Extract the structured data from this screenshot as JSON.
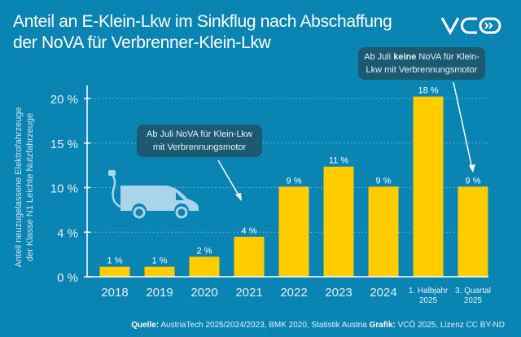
{
  "title_lines": [
    "Anteil an E-Klein-Lkw im Sinkflug nach Abschaffung",
    "der NoVA für Verbrenner-Klein-Lkw"
  ],
  "logo": "VCÖ",
  "colors": {
    "background": "#0a84b2",
    "bar": "#ffcc00",
    "annotation": "#1c5a72",
    "van_icon": "#a9d4ea"
  },
  "icons": [
    "electric-van-icon",
    "arrow-icon"
  ],
  "chart_data": {
    "type": "bar",
    "ylabel_lines": [
      "Anteil neuzugelassene Elektrofahrzeuge",
      "der Klasse N1 Leichte Nutzfahrzeuge"
    ],
    "categories": [
      "2018",
      "2019",
      "2020",
      "2021",
      "2022",
      "2023",
      "2024",
      "1. Halbjahr 2025",
      "3. Quartal 2025"
    ],
    "category_lines": [
      [
        "2018"
      ],
      [
        "2019"
      ],
      [
        "2020"
      ],
      [
        "2021"
      ],
      [
        "2022"
      ],
      [
        "2023"
      ],
      [
        "2024"
      ],
      [
        "1. Halbjahr",
        "2025"
      ],
      [
        "3. Quartal",
        "2025"
      ]
    ],
    "values": [
      1,
      1,
      2,
      4,
      9,
      11,
      9,
      18,
      9
    ],
    "data_labels": [
      "1 %",
      "1 %",
      "2 %",
      "4 %",
      "9 %",
      "11 %",
      "9 %",
      "18 %",
      "9 %"
    ],
    "y_tick_labels": [
      "0 %",
      "4 %",
      "10 %",
      "15 %",
      "20 %"
    ],
    "grid": true,
    "annotations": [
      {
        "text_lines": [
          "Ab Juli NoVA für Klein-Lkw",
          "mit Verbrennungsmotor"
        ],
        "target": "2021"
      },
      {
        "text_before": "Ab Juli ",
        "text_bold": "keine",
        "text_after": " NoVA für Klein-",
        "text_line2": "Lkw mit Verbrennungsmotor",
        "target": "3. Quartal 2025"
      }
    ]
  },
  "source": {
    "label": "Quelle:",
    "text": " AustriaTech 2025/2024/2023, BMK 2020, Statistik Austria ",
    "grafik_label": "Grafik:",
    "grafik_text": " VCÖ 2025, Lizenz CC BY-ND"
  }
}
